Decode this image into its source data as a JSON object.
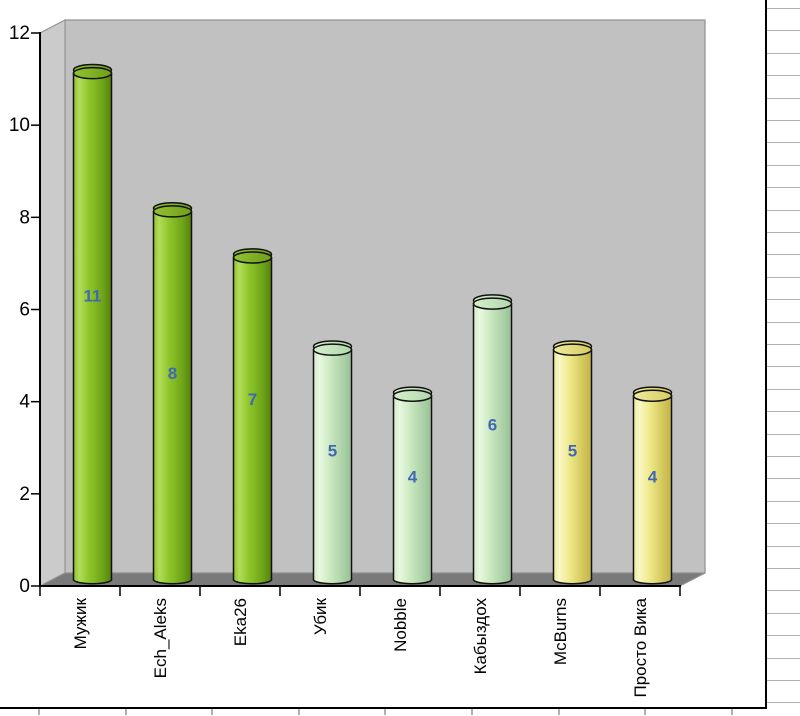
{
  "chart_data": {
    "type": "bar",
    "render_style": "3d-cylinder",
    "title": "",
    "xlabel": "",
    "ylabel": "",
    "categories": [
      "Мужик",
      "Ech_Aleks",
      "Eka26",
      "Убик",
      "Nobble",
      "Кабыздох",
      "McBurns",
      "Просто Вика"
    ],
    "values": [
      11,
      8,
      7,
      5,
      4,
      6,
      5,
      4
    ],
    "data_labels": [
      "11",
      "8",
      "7",
      "5",
      "4",
      "6",
      "5",
      "4"
    ],
    "y_ticks": [
      "0",
      "2",
      "4",
      "6",
      "8",
      "10",
      "12"
    ],
    "ylim": [
      0,
      12
    ],
    "grid": false,
    "legend": "none",
    "bar_color_group": [
      0,
      0,
      0,
      1,
      1,
      1,
      2,
      2
    ],
    "colors": {
      "data_label": "#4169b2",
      "axis_text": "#000000",
      "axis_line": "#000000",
      "outline": "#111111",
      "wall_back": "#c1c1c1",
      "wall_side": "#cbcbcb",
      "wall_edge": "#8f8f8f",
      "floor": "#7a7a7a",
      "chart_border": "#000000",
      "chart_bg": "#ffffff",
      "sheet_gridline": "#b0b0b0",
      "bar_groups": [
        {
          "name": "green",
          "body": [
            "#8fbf2e",
            "#b2dd58",
            "#8ec42a",
            "#6da317",
            "#588010"
          ],
          "cap": [
            "#93c233",
            "#6f9e18"
          ]
        },
        {
          "name": "mint",
          "body": [
            "#cfeac6",
            "#e9f8e2",
            "#cdeac2",
            "#aad0a6",
            "#9cc19a"
          ],
          "cap": [
            "#d6efcd",
            "#b0d7ac"
          ]
        },
        {
          "name": "yellow",
          "body": [
            "#eeeb9e",
            "#faf7c6",
            "#efe98a",
            "#d3c75a",
            "#c2b34c"
          ],
          "cap": [
            "#efeb9e",
            "#d6cb60"
          ]
        }
      ]
    }
  }
}
